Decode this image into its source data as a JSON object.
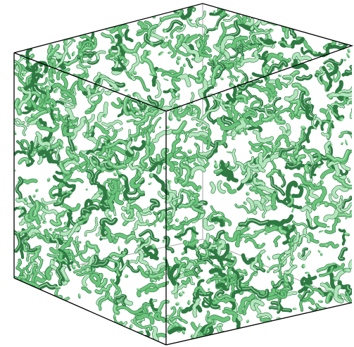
{
  "image": {
    "subject": "isosurface-rendering",
    "colors": {
      "background": "#ffffff",
      "surface_mid": "#6cc47c",
      "surface_dark": "#2f7a43",
      "surface_light": "#b4e6bd",
      "edge": "#000000"
    }
  }
}
